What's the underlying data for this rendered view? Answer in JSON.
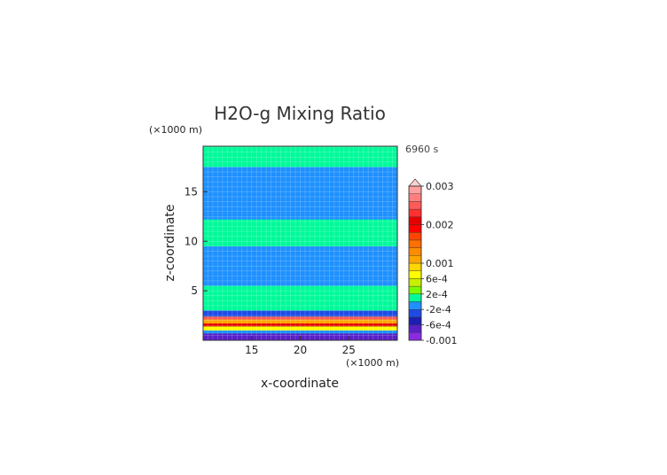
{
  "chart_data": {
    "type": "heatmap",
    "title": "H2O-g Mixing Ratio",
    "time_label": "6960 s",
    "xlabel": "x-coordinate",
    "ylabel": "z-coordinate",
    "x_unit": "(×1000 m)",
    "y_unit": "(×1000 m)",
    "xlim": [
      10,
      30
    ],
    "ylim": [
      0,
      19.6
    ],
    "x_ticks": [
      15,
      20,
      25
    ],
    "y_ticks": [
      5,
      10,
      15
    ],
    "grid": true,
    "legend_position": "right",
    "colorbar": {
      "levels": [
        -0.001,
        -0.0008,
        -0.0006,
        -0.0004,
        -0.0002,
        0,
        0.0002,
        0.0004,
        0.0006,
        0.0008,
        0.001,
        0.0012,
        0.0014,
        0.0016,
        0.0018,
        0.002,
        0.0022,
        0.0024,
        0.0026,
        0.0028,
        0.003
      ],
      "colors": [
        "#8a2be2",
        "#5a1fc8",
        "#1e1eb4",
        "#1e4be6",
        "#1e90ff",
        "#00fa9a",
        "#7cfc00",
        "#c8f000",
        "#ffff00",
        "#ffd700",
        "#ffa500",
        "#ff8c00",
        "#ff7000",
        "#ff4500",
        "#ff0000",
        "#e60000",
        "#ff3030",
        "#ff5a5a",
        "#ff7f7f",
        "#ffa0a0"
      ],
      "labels": [
        "0.003",
        "0.002",
        "0.001",
        "6e-4",
        "2e-4",
        "-2e-4",
        "-6e-4",
        "-0.001"
      ],
      "label_values": [
        0.003,
        0.002,
        0.001,
        0.0006,
        0.0002,
        -0.0002,
        -0.0006,
        -0.001
      ],
      "extend": "max"
    },
    "series": [
      {
        "z": [
          0.0,
          0.7
        ],
        "value": -0.0007
      },
      {
        "z": [
          0.7,
          1.0
        ],
        "value": -0.0002
      },
      {
        "z": [
          1.0,
          1.4
        ],
        "value": 0.0006
      },
      {
        "z": [
          1.4,
          1.7
        ],
        "value": 0.002
      },
      {
        "z": [
          1.7,
          2.1
        ],
        "value": 0.001
      },
      {
        "z": [
          2.1,
          2.4
        ],
        "value": 0.0025
      },
      {
        "z": [
          2.4,
          3.0
        ],
        "value": -0.0003
      },
      {
        "z": [
          3.0,
          5.5
        ],
        "value": 0.0001
      },
      {
        "z": [
          5.5,
          7.5
        ],
        "value": -0.0001
      },
      {
        "z": [
          7.5,
          9.5
        ],
        "value": -0.0001
      },
      {
        "z": [
          9.5,
          12.2
        ],
        "value": 0.0001
      },
      {
        "z": [
          12.2,
          17.5
        ],
        "value": -0.0001
      },
      {
        "z": [
          17.5,
          19.6
        ],
        "value": 0.0001
      }
    ]
  }
}
